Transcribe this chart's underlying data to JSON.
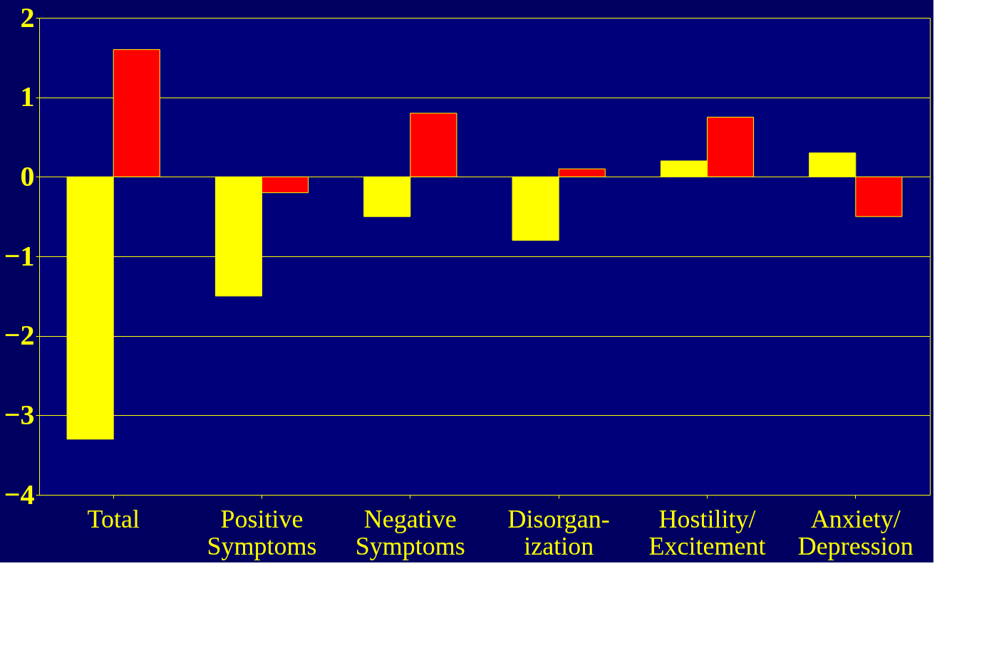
{
  "chart_data": {
    "type": "bar",
    "categories": [
      "Total",
      "Positive\nSymptoms",
      "Negative\nSymptoms",
      "Disorgan-\nization",
      "Hostility/\nExcitement",
      "Anxiety/\nDepression"
    ],
    "series": [
      {
        "color": "#ffff00",
        "values": [
          -3.3,
          -1.5,
          -0.5,
          -0.8,
          0.2,
          0.3
        ]
      },
      {
        "color": "#ff0000",
        "values": [
          1.6,
          -0.2,
          0.8,
          0.1,
          0.75,
          -0.5
        ]
      }
    ],
    "ylim": [
      -4,
      2
    ],
    "yticks": [
      -4,
      -3,
      -2,
      -1,
      0,
      1,
      2
    ],
    "grid": "y",
    "legend": false
  }
}
